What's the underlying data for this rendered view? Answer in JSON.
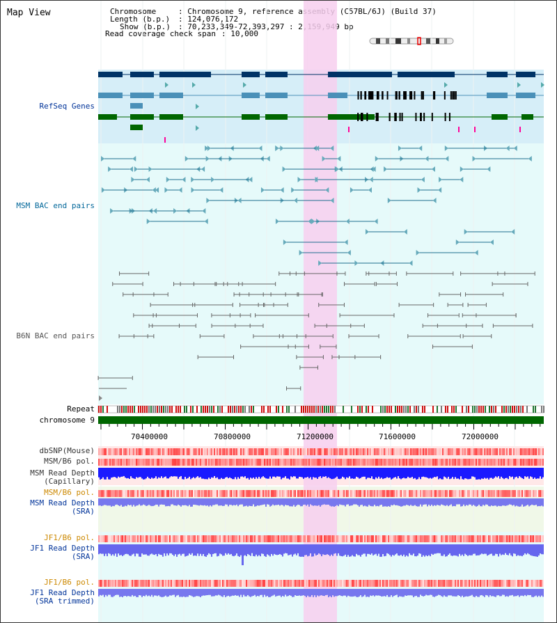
{
  "page": {
    "title": "Map View"
  },
  "info": {
    "chromosome_label": "Chromosome",
    "chromosome_value": ": Chromosome 9, reference assembly (C57BL/6J) (Build 37)",
    "length_label": "Length (b.p.)",
    "length_value": ": 124,076,172",
    "show_label": "Show (b.p.)",
    "show_value": ": 70,233,349-72,393,297 : 2,159,949 bp",
    "span_label": "Read coverage check span",
    "span_value": ": 10,000"
  },
  "tracks": {
    "refseq": "RefSeq Genes",
    "msm_bac": "MSM BAC end pairs",
    "b6n_bac": "B6N BAC end pairs",
    "repeat": "Repeat",
    "chromosome": "chromosome 9",
    "dbsnp": "dbSNP(Mouse)",
    "msm_pol": "MSM/B6 pol.",
    "msm_depth_cap_1": "MSM Read Depth",
    "msm_depth_cap_2": "(Capillary)",
    "msm_pol_sra": "MSM/B6 pol.",
    "msm_depth_sra_1": "MSM Read Depth",
    "msm_depth_sra_2": "(SRA)",
    "jf1_pol": "JF1/B6 pol.",
    "jf1_depth_1": "JF1 Read Depth",
    "jf1_depth_2": "(SRA)",
    "jf1_pol_2": "JF1/B6 pol.",
    "jf1_trim_1": "JF1 Read Depth",
    "jf1_trim_2": "(SRA trimmed)"
  },
  "axis": {
    "ticks": [
      "70400000",
      "70800000",
      "71200000",
      "71600000",
      "72000000"
    ]
  },
  "colors": {
    "refseq_bg": "#d6eef8",
    "bac_bg": "#e6fafa",
    "highlight": "#f7d2f0",
    "gene_dark": "#003366",
    "gene_mid": "#4a90b8",
    "gene_green": "#006600",
    "msm_line": "#1f6f8f",
    "b6n_line": "#666666",
    "chrom_green": "#006600",
    "depth_blue": "#1a1aff",
    "depth_light": "#7777ee",
    "label_blue": "#003399",
    "label_teal": "#006699",
    "label_orange": "#cc8800"
  }
}
